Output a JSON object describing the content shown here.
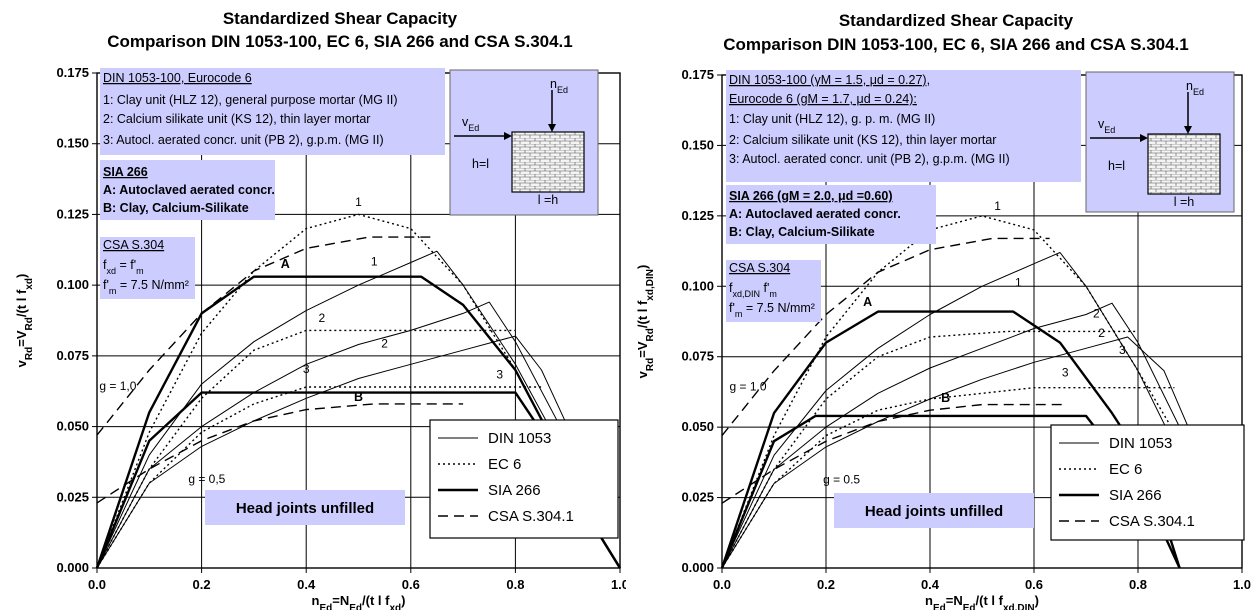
{
  "colors": {
    "box_fill": "#ccccff",
    "line": "#000000",
    "grid": "#000000",
    "insert_fill": "#ccccff"
  },
  "chart_data": [
    {
      "type": "line",
      "title_line1": "Standardized Shear Capacity",
      "title_line2": "Comparison DIN 1053-100, EC 6, SIA 266 and CSA S.304.1",
      "xlabel": "n_Ed=N_Ed/(t l f_xd)",
      "xlabel_parts": {
        "main": "n",
        "sub1": "Ed",
        "mid": "=N",
        "sub2": "Ed",
        "tail": "/(t l f",
        "sub3": "xd",
        "close": ")"
      },
      "ylabel_parts": {
        "main": "v",
        "sub1": "Rd",
        "mid": "=V",
        "sub2": "Rd",
        "tail": "/(t l f",
        "sub3": "xd",
        "close": ")"
      },
      "xlim": [
        0,
        1.0
      ],
      "ylim": [
        0,
        0.175
      ],
      "xticks": [
        "0.0",
        "0.2",
        "0.4",
        "0.6",
        "0.8",
        "1.0"
      ],
      "yticks": [
        "0.000",
        "0.025",
        "0.050",
        "0.075",
        "0.100",
        "0.125",
        "0.150",
        "0.175"
      ],
      "grid": true,
      "legend": {
        "position": "bottom-right",
        "entries": [
          "DIN 1053",
          "EC 6",
          "SIA 266",
          "CSA S.304.1"
        ]
      },
      "box_din": {
        "l1": "DIN 1053-100, Eurocode 6",
        "l2": "1: Clay unit (HLZ 12), general purpose mortar (MG II)",
        "l3": "2: Calcium silikate unit (KS 12), thin layer mortar",
        "l4": "3: Autocl. aerated concr. unit (PB 2), g.p.m. (MG II)"
      },
      "box_sia": {
        "l1": "SIA 266",
        "l2": "A: Autoclaved aerated concr.",
        "l3": "B: Clay, Calcium-Silikate"
      },
      "box_csa": {
        "l1": "CSA S.304",
        "l2": "f",
        "l2sub": "xd",
        "l2b": " =     f'",
        "l2c": "m",
        "l3": "f'",
        "l3sub": "m",
        "l3b": " = 7.5 N/mm²"
      },
      "insert": {
        "n": "n",
        "n_sub": "Ed",
        "v": "v",
        "v_sub": "Ed",
        "h": "h=l",
        "l": "l =h"
      },
      "head_joints": "Head joints unfilled",
      "annotations": [
        {
          "text": "g = 1,0",
          "x": 0.04,
          "y": 0.063
        },
        {
          "text": "g = 0,5",
          "x": 0.21,
          "y": 0.03
        },
        {
          "text": "1",
          "x": 0.5,
          "y": 0.128
        },
        {
          "text": "1",
          "x": 0.53,
          "y": 0.107
        },
        {
          "text": "A",
          "x": 0.36,
          "y": 0.106
        },
        {
          "text": "2",
          "x": 0.43,
          "y": 0.087
        },
        {
          "text": "2",
          "x": 0.55,
          "y": 0.078
        },
        {
          "text": "3",
          "x": 0.4,
          "y": 0.069
        },
        {
          "text": "3",
          "x": 0.77,
          "y": 0.067
        },
        {
          "text": "B",
          "x": 0.5,
          "y": 0.059
        }
      ],
      "series": [
        {
          "name": "DIN 1053",
          "style": "thin",
          "points": [
            [
              0,
              0
            ],
            [
              0.1,
              0.04
            ],
            [
              0.2,
              0.065
            ],
            [
              0.3,
              0.08
            ],
            [
              0.4,
              0.091
            ],
            [
              0.5,
              0.1
            ],
            [
              0.6,
              0.108
            ],
            [
              0.65,
              0.112
            ],
            [
              0.7,
              0.1
            ],
            [
              0.8,
              0.072
            ],
            [
              0.9,
              0.038
            ],
            [
              0.95,
              0.02
            ]
          ]
        },
        {
          "name": "DIN 1053",
          "style": "thin",
          "points": [
            [
              0,
              0
            ],
            [
              0.1,
              0.035
            ],
            [
              0.2,
              0.05
            ],
            [
              0.3,
              0.062
            ],
            [
              0.4,
              0.072
            ],
            [
              0.5,
              0.079
            ],
            [
              0.6,
              0.084
            ],
            [
              0.7,
              0.09
            ],
            [
              0.75,
              0.094
            ],
            [
              0.8,
              0.08
            ],
            [
              0.9,
              0.045
            ]
          ]
        },
        {
          "name": "DIN 1053",
          "style": "thin",
          "points": [
            [
              0,
              0
            ],
            [
              0.1,
              0.03
            ],
            [
              0.2,
              0.043
            ],
            [
              0.3,
              0.052
            ],
            [
              0.4,
              0.06
            ],
            [
              0.5,
              0.067
            ],
            [
              0.6,
              0.072
            ],
            [
              0.7,
              0.077
            ],
            [
              0.8,
              0.082
            ],
            [
              0.85,
              0.07
            ],
            [
              0.95,
              0.03
            ]
          ]
        },
        {
          "name": "EC 6",
          "style": "dotted",
          "points": [
            [
              0,
              0
            ],
            [
              0.1,
              0.048
            ],
            [
              0.2,
              0.083
            ],
            [
              0.3,
              0.105
            ],
            [
              0.4,
              0.12
            ],
            [
              0.5,
              0.125
            ],
            [
              0.6,
              0.12
            ],
            [
              0.7,
              0.1
            ],
            [
              0.8,
              0.07
            ],
            [
              0.9,
              0.035
            ]
          ]
        },
        {
          "name": "EC 6",
          "style": "dotted",
          "points": [
            [
              0,
              0
            ],
            [
              0.1,
              0.035
            ],
            [
              0.2,
              0.06
            ],
            [
              0.3,
              0.077
            ],
            [
              0.4,
              0.084
            ],
            [
              0.8,
              0.084
            ]
          ]
        },
        {
          "name": "EC 6",
          "style": "dotted",
          "points": [
            [
              0,
              0
            ],
            [
              0.1,
              0.03
            ],
            [
              0.2,
              0.048
            ],
            [
              0.3,
              0.058
            ],
            [
              0.4,
              0.064
            ],
            [
              0.85,
              0.064
            ]
          ]
        },
        {
          "name": "SIA 266",
          "style": "bold",
          "points": [
            [
              0,
              0
            ],
            [
              0.1,
              0.055
            ],
            [
              0.2,
              0.09
            ],
            [
              0.3,
              0.103
            ],
            [
              0.62,
              0.103
            ],
            [
              0.7,
              0.093
            ],
            [
              0.8,
              0.07
            ],
            [
              0.9,
              0.035
            ],
            [
              0.95,
              0.015
            ],
            [
              1.0,
              0
            ]
          ]
        },
        {
          "name": "SIA 266",
          "style": "bold",
          "points": [
            [
              0,
              0
            ],
            [
              0.1,
              0.045
            ],
            [
              0.2,
              0.062
            ],
            [
              0.8,
              0.062
            ],
            [
              0.88,
              0.04
            ],
            [
              0.95,
              0.015
            ],
            [
              1.0,
              0
            ]
          ]
        },
        {
          "name": "CSA S.304.1",
          "style": "dashed",
          "points": [
            [
              0,
              0.047
            ],
            [
              0.1,
              0.07
            ],
            [
              0.2,
              0.09
            ],
            [
              0.3,
              0.105
            ],
            [
              0.4,
              0.113
            ],
            [
              0.52,
              0.117
            ],
            [
              0.64,
              0.117
            ]
          ]
        },
        {
          "name": "CSA S.304.1",
          "style": "dashed",
          "points": [
            [
              0,
              0.023
            ],
            [
              0.1,
              0.035
            ],
            [
              0.2,
              0.045
            ],
            [
              0.3,
              0.052
            ],
            [
              0.4,
              0.056
            ],
            [
              0.53,
              0.058
            ],
            [
              0.7,
              0.058
            ]
          ]
        }
      ]
    },
    {
      "type": "line",
      "title_line1": "Standardized Shear Capacity",
      "title_line2": "Comparison DIN 1053-100, EC 6, SIA 266 and CSA S.304.1",
      "xlabel_parts": {
        "main": "n",
        "sub1": "Ed",
        "mid": "=N",
        "sub2": "Ed",
        "tail": "/(t l f",
        "sub3": "xd,DIN",
        "close": ")"
      },
      "ylabel_parts": {
        "main": "v",
        "sub1": "Rd",
        "mid": "=V",
        "sub2": "Rd",
        "tail": "/(t l f",
        "sub3": "xd,DIN",
        "close": ")"
      },
      "xlim": [
        0,
        1.0
      ],
      "ylim": [
        0,
        0.175
      ],
      "xticks": [
        "0.0",
        "0.2",
        "0.4",
        "0.6",
        "0.8",
        "1.0"
      ],
      "yticks": [
        "0.000",
        "0.025",
        "0.050",
        "0.075",
        "0.100",
        "0.125",
        "0.150",
        "0.175"
      ],
      "grid": true,
      "legend": {
        "position": "bottom-right",
        "entries": [
          "DIN 1053",
          "EC 6",
          "SIA 266",
          "CSA S.304.1"
        ]
      },
      "box_din": {
        "l1": "DIN 1053-100 (γM = 1.5, μd = 0.27),",
        "l1b": "Eurocode 6 (gM = 1.7, μd = 0.24):",
        "l2": "1: Clay unit (HLZ 12), g. p. m. (MG II)",
        "l3": "2: Calcium silikate unit (KS 12), thin layer mortar",
        "l4": "3: Autocl. aerated concr. unit (PB 2), g.p.m. (MG II)"
      },
      "box_sia": {
        "l1": "SIA 266 (gM = 2.0, μd =0.60)",
        "l2": "A: Autoclaved aerated concr.",
        "l3": "B: Clay, Calcium-Silikate"
      },
      "box_csa": {
        "l1": "CSA S.304",
        "l2": "f",
        "l2sub": "xd,DIN",
        "l2b": "     f'",
        "l2c": "m",
        "l3": "f'",
        "l3sub": "m",
        "l3b": " = 7.5 N/mm²"
      },
      "insert": {
        "n": "n",
        "n_sub": "Ed",
        "v": "v",
        "v_sub": "Ed",
        "h": "h=l",
        "l": "l =h"
      },
      "head_joints": "Head joints unfilled",
      "annotations": [
        {
          "text": "g = 1.0",
          "x": 0.05,
          "y": 0.063
        },
        {
          "text": "g = 0.5",
          "x": 0.23,
          "y": 0.03
        },
        {
          "text": "1",
          "x": 0.53,
          "y": 0.127
        },
        {
          "text": "1",
          "x": 0.57,
          "y": 0.1
        },
        {
          "text": "A",
          "x": 0.28,
          "y": 0.093
        },
        {
          "text": "2",
          "x": 0.72,
          "y": 0.089
        },
        {
          "text": "2",
          "x": 0.73,
          "y": 0.082
        },
        {
          "text": "3",
          "x": 0.77,
          "y": 0.076
        },
        {
          "text": "3",
          "x": 0.66,
          "y": 0.068
        },
        {
          "text": "B",
          "x": 0.43,
          "y": 0.059
        }
      ],
      "series": [
        {
          "name": "DIN 1053",
          "style": "thin",
          "points": [
            [
              0,
              0
            ],
            [
              0.1,
              0.04
            ],
            [
              0.2,
              0.063
            ],
            [
              0.3,
              0.078
            ],
            [
              0.4,
              0.09
            ],
            [
              0.5,
              0.1
            ],
            [
              0.6,
              0.108
            ],
            [
              0.65,
              0.112
            ],
            [
              0.7,
              0.1
            ],
            [
              0.8,
              0.07
            ],
            [
              0.88,
              0.04
            ]
          ]
        },
        {
          "name": "DIN 1053",
          "style": "thin",
          "points": [
            [
              0,
              0
            ],
            [
              0.1,
              0.035
            ],
            [
              0.2,
              0.05
            ],
            [
              0.3,
              0.062
            ],
            [
              0.4,
              0.071
            ],
            [
              0.5,
              0.078
            ],
            [
              0.6,
              0.085
            ],
            [
              0.7,
              0.09
            ],
            [
              0.75,
              0.094
            ],
            [
              0.8,
              0.08
            ],
            [
              0.88,
              0.05
            ]
          ]
        },
        {
          "name": "DIN 1053",
          "style": "thin",
          "points": [
            [
              0,
              0
            ],
            [
              0.1,
              0.03
            ],
            [
              0.2,
              0.043
            ],
            [
              0.3,
              0.052
            ],
            [
              0.4,
              0.06
            ],
            [
              0.5,
              0.067
            ],
            [
              0.6,
              0.073
            ],
            [
              0.7,
              0.078
            ],
            [
              0.78,
              0.082
            ],
            [
              0.85,
              0.07
            ],
            [
              0.92,
              0.04
            ]
          ]
        },
        {
          "name": "EC 6",
          "style": "dotted",
          "points": [
            [
              0,
              0
            ],
            [
              0.1,
              0.047
            ],
            [
              0.2,
              0.082
            ],
            [
              0.3,
              0.105
            ],
            [
              0.4,
              0.12
            ],
            [
              0.5,
              0.125
            ],
            [
              0.6,
              0.12
            ],
            [
              0.7,
              0.1
            ],
            [
              0.8,
              0.07
            ],
            [
              0.88,
              0.045
            ]
          ]
        },
        {
          "name": "EC 6",
          "style": "dotted",
          "points": [
            [
              0,
              0
            ],
            [
              0.1,
              0.035
            ],
            [
              0.2,
              0.06
            ],
            [
              0.3,
              0.075
            ],
            [
              0.4,
              0.082
            ],
            [
              0.55,
              0.084
            ],
            [
              0.8,
              0.084
            ]
          ]
        },
        {
          "name": "EC 6",
          "style": "dotted",
          "points": [
            [
              0,
              0
            ],
            [
              0.1,
              0.03
            ],
            [
              0.2,
              0.047
            ],
            [
              0.3,
              0.056
            ],
            [
              0.4,
              0.06
            ],
            [
              0.6,
              0.064
            ],
            [
              0.87,
              0.064
            ]
          ]
        },
        {
          "name": "SIA 266",
          "style": "bold",
          "points": [
            [
              0,
              0
            ],
            [
              0.1,
              0.055
            ],
            [
              0.2,
              0.08
            ],
            [
              0.3,
              0.091
            ],
            [
              0.56,
              0.091
            ],
            [
              0.65,
              0.08
            ],
            [
              0.75,
              0.055
            ],
            [
              0.82,
              0.035
            ],
            [
              0.88,
              0
            ]
          ]
        },
        {
          "name": "SIA 266",
          "style": "bold",
          "points": [
            [
              0,
              0
            ],
            [
              0.1,
              0.045
            ],
            [
              0.18,
              0.054
            ],
            [
              0.7,
              0.054
            ],
            [
              0.78,
              0.035
            ],
            [
              0.85,
              0.012
            ],
            [
              0.88,
              0
            ]
          ]
        },
        {
          "name": "CSA S.304.1",
          "style": "dashed",
          "points": [
            [
              0,
              0.047
            ],
            [
              0.1,
              0.07
            ],
            [
              0.2,
              0.09
            ],
            [
              0.3,
              0.105
            ],
            [
              0.4,
              0.113
            ],
            [
              0.52,
              0.117
            ],
            [
              0.63,
              0.117
            ]
          ]
        },
        {
          "name": "CSA S.304.1",
          "style": "dashed",
          "points": [
            [
              0,
              0.023
            ],
            [
              0.1,
              0.035
            ],
            [
              0.2,
              0.045
            ],
            [
              0.3,
              0.052
            ],
            [
              0.4,
              0.056
            ],
            [
              0.5,
              0.058
            ],
            [
              0.66,
              0.058
            ]
          ]
        }
      ]
    }
  ]
}
